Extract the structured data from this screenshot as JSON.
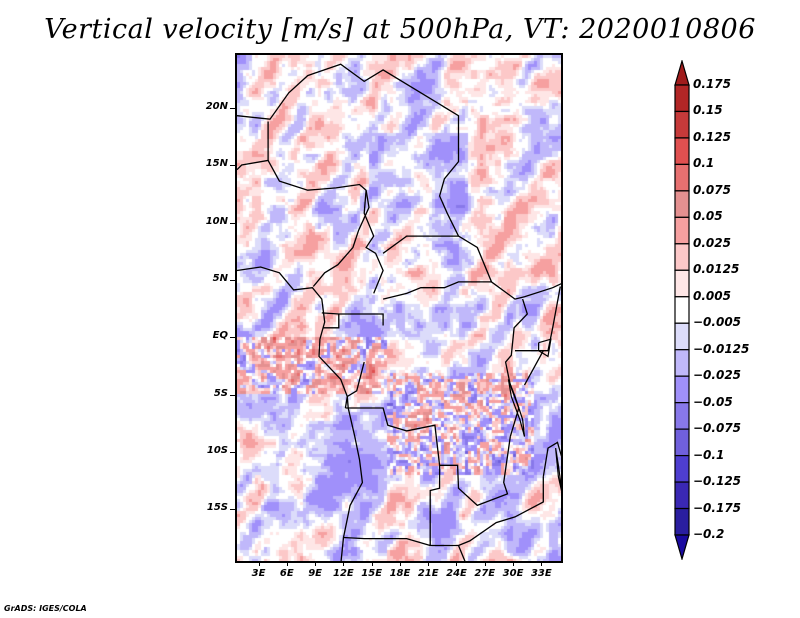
{
  "title": "Vertical velocity [m/s] at 500hPa, VT: 2020010806",
  "credit": "GrADS: IGES/COLA",
  "chart_data": {
    "type": "heatmap",
    "title": "Vertical velocity [m/s] at 500hPa, VT: 2020010806",
    "variable": "Vertical velocity",
    "units": "m/s",
    "level": "500hPa",
    "valid_time": "2020010806",
    "xlabel": "",
    "ylabel": "",
    "x_ticks": [
      "3E",
      "6E",
      "9E",
      "12E",
      "15E",
      "18E",
      "21E",
      "24E",
      "27E",
      "30E",
      "33E"
    ],
    "x_tick_values": [
      3,
      6,
      9,
      12,
      15,
      18,
      21,
      24,
      27,
      30,
      33
    ],
    "y_ticks": [
      "20N",
      "15N",
      "10N",
      "5N",
      "EQ",
      "5S",
      "10S",
      "15S"
    ],
    "y_tick_values": [
      20,
      15,
      10,
      5,
      0,
      -5,
      -10,
      -15
    ],
    "lon_range": [
      0.5,
      35.3
    ],
    "lat_range": [
      -19.7,
      24.8
    ],
    "legend_position": "right",
    "colorbar": {
      "levels": [
        0.175,
        0.15,
        0.125,
        0.1,
        0.075,
        0.05,
        0.025,
        0.0125,
        0.005,
        -0.005,
        -0.0125,
        -0.025,
        -0.05,
        -0.075,
        -0.1,
        -0.125,
        -0.175,
        -0.2
      ],
      "labels": [
        "0.175",
        "0.15",
        "0.125",
        "0.1",
        "0.075",
        "0.05",
        "0.025",
        "0.0125",
        "0.005",
        "−0.005",
        "−0.0125",
        "−0.025",
        "−0.05",
        "−0.075",
        "−0.1",
        "−0.125",
        "−0.175",
        "−0.2"
      ],
      "colors": [
        "#a01c1c",
        "#b22626",
        "#c63a3a",
        "#e05050",
        "#e67070",
        "#e49090",
        "#f6a0a0",
        "#fcc8c8",
        "#fee6e6",
        "#ffffff",
        "#dcdcfa",
        "#c0b8fa",
        "#a090fa",
        "#8878ea",
        "#7060dc",
        "#4e3ed0",
        "#3a28b4",
        "#2a1ea0",
        "#1a0aa0"
      ],
      "extend": "both"
    }
  }
}
